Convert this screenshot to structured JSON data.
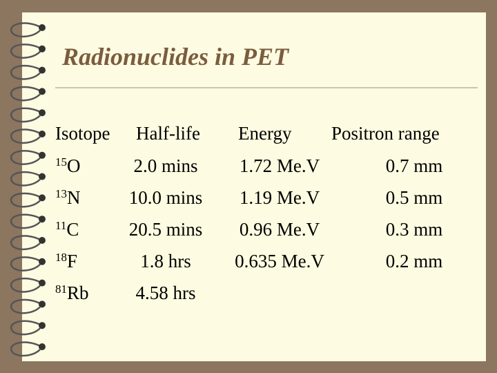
{
  "title": "Radionuclides in PET",
  "table": {
    "header": [
      "Isotope",
      "Half-life",
      "Energy",
      "Positron range"
    ],
    "rows": [
      {
        "mass": "15",
        "element": "O",
        "half_life": "2.0 mins",
        "energy": "1.72 Me.V",
        "range": "0.7 mm"
      },
      {
        "mass": "13",
        "element": "N",
        "half_life": "10.0 mins",
        "energy": "1.19 Me.V",
        "range": "0.5 mm"
      },
      {
        "mass": "11",
        "element": "C",
        "half_life": "20.5 mins",
        "energy": "0.96 Me.V",
        "range": "0.3 mm"
      },
      {
        "mass": "18",
        "element": "F",
        "half_life": "1.8 hrs",
        "energy": "0.635 Me.V",
        "range": "0.2 mm"
      },
      {
        "mass": "81",
        "element": "Rb",
        "half_life": "4.58 hrs"
      }
    ]
  }
}
